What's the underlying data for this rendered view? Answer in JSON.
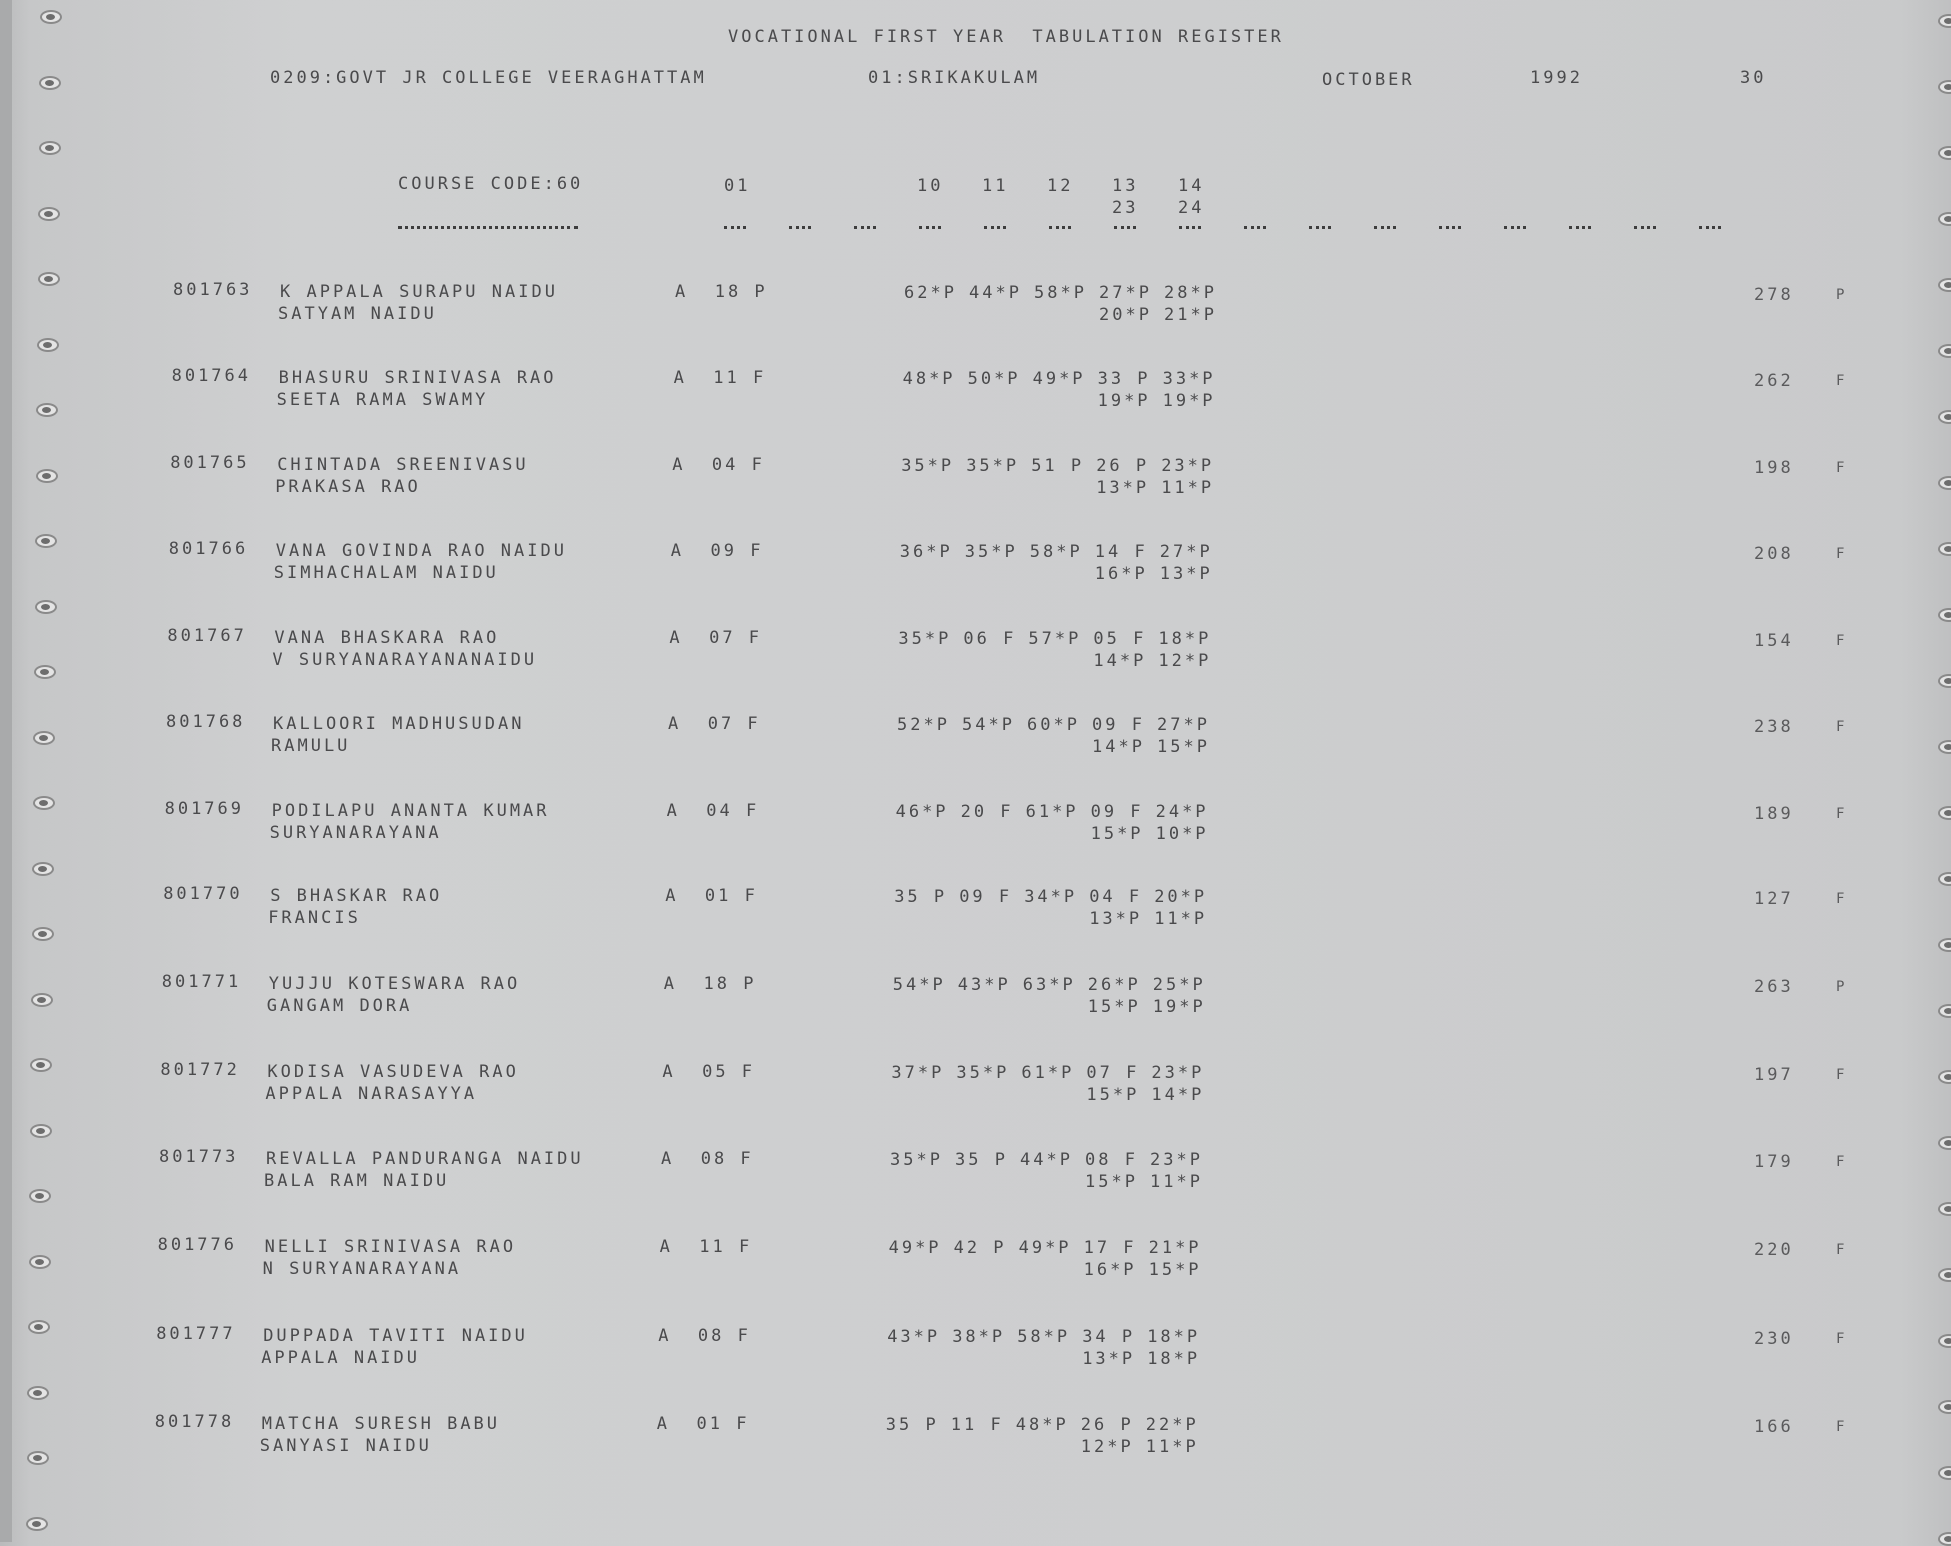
{
  "header": {
    "title": "VOCATIONAL FIRST YEAR  TABULATION REGISTER",
    "college": "0209:GOVT JR COLLEGE VEERAGHATTAM",
    "district": "01:SRIKAKULAM",
    "month": "OCTOBER",
    "year": "1992",
    "page": "30"
  },
  "columns": {
    "course_code": "COURSE CODE:60",
    "col_01": "01",
    "subjects": [
      "10",
      "11",
      "12",
      "13",
      "14"
    ],
    "subjects_line2": [
      "23",
      "24"
    ]
  },
  "rows": [
    {
      "roll": "801763",
      "name1": "K APPALA SURAPU NAIDU",
      "name2": "SATYAM NAIDU",
      "grade": "A  18 P",
      "marks": [
        "62*P",
        "44*P",
        "58*P",
        "27*P",
        "28*P"
      ],
      "marks2": [
        "20*P",
        "21*P"
      ],
      "total": "278",
      "result": "P"
    },
    {
      "roll": "801764",
      "name1": "BHASURU SRINIVASA RAO",
      "name2": "SEETA RAMA SWAMY",
      "grade": "A  11 F",
      "marks": [
        "48*P",
        "50*P",
        "49*P",
        "33 P",
        "33*P"
      ],
      "marks2": [
        "19*P",
        "19*P"
      ],
      "total": "262",
      "result": "F"
    },
    {
      "roll": "801765",
      "name1": "CHINTADA SREENIVASU",
      "name2": "PRAKASA RAO",
      "grade": "A  04 F",
      "marks": [
        "35*P",
        "35*P",
        "51 P",
        "26 P",
        "23*P"
      ],
      "marks2": [
        "13*P",
        "11*P"
      ],
      "total": "198",
      "result": "F"
    },
    {
      "roll": "801766",
      "name1": "VANA GOVINDA RAO NAIDU",
      "name2": "SIMHACHALAM NAIDU",
      "grade": "A  09 F",
      "marks": [
        "36*P",
        "35*P",
        "58*P",
        "14 F",
        "27*P"
      ],
      "marks2": [
        "16*P",
        "13*P"
      ],
      "total": "208",
      "result": "F"
    },
    {
      "roll": "801767",
      "name1": "VANA BHASKARA RAO",
      "name2": "V SURYANARAYANANAIDU",
      "grade": "A  07 F",
      "marks": [
        "35*P",
        "06 F",
        "57*P",
        "05 F",
        "18*P"
      ],
      "marks2": [
        "14*P",
        "12*P"
      ],
      "total": "154",
      "result": "F"
    },
    {
      "roll": "801768",
      "name1": "KALLOORI MADHUSUDAN",
      "name2": "RAMULU",
      "grade": "A  07 F",
      "marks": [
        "52*P",
        "54*P",
        "60*P",
        "09 F",
        "27*P"
      ],
      "marks2": [
        "14*P",
        "15*P"
      ],
      "total": "238",
      "result": "F"
    },
    {
      "roll": "801769",
      "name1": "PODILAPU ANANTA KUMAR",
      "name2": "SURYANARAYANA",
      "grade": "A  04 F",
      "marks": [
        "46*P",
        "20 F",
        "61*P",
        "09 F",
        "24*P"
      ],
      "marks2": [
        "15*P",
        "10*P"
      ],
      "total": "189",
      "result": "F"
    },
    {
      "roll": "801770",
      "name1": "S BHASKAR RAO",
      "name2": "FRANCIS",
      "grade": "A  01 F",
      "marks": [
        "35 P",
        "09 F",
        "34*P",
        "04 F",
        "20*P"
      ],
      "marks2": [
        "13*P",
        "11*P"
      ],
      "total": "127",
      "result": "F"
    },
    {
      "roll": "801771",
      "name1": "YUJJU KOTESWARA RAO",
      "name2": "GANGAM DORA",
      "grade": "A  18 P",
      "marks": [
        "54*P",
        "43*P",
        "63*P",
        "26*P",
        "25*P"
      ],
      "marks2": [
        "15*P",
        "19*P"
      ],
      "total": "263",
      "result": "P"
    },
    {
      "roll": "801772",
      "name1": "KODISA VASUDEVA RAO",
      "name2": "APPALA NARASAYYA",
      "grade": "A  05 F",
      "marks": [
        "37*P",
        "35*P",
        "61*P",
        "07 F",
        "23*P"
      ],
      "marks2": [
        "15*P",
        "14*P"
      ],
      "total": "197",
      "result": "F"
    },
    {
      "roll": "801773",
      "name1": "REVALLA PANDURANGA NAIDU",
      "name2": "BALA RAM NAIDU",
      "grade": "A  08 F",
      "marks": [
        "35*P",
        "35 P",
        "44*P",
        "08 F",
        "23*P"
      ],
      "marks2": [
        "15*P",
        "11*P"
      ],
      "total": "179",
      "result": "F"
    },
    {
      "roll": "801776",
      "name1": "NELLI SRINIVASA RAO",
      "name2": "N SURYANARAYANA",
      "grade": "A  11 F",
      "marks": [
        "49*P",
        "42 P",
        "49*P",
        "17 F",
        "21*P"
      ],
      "marks2": [
        "16*P",
        "15*P"
      ],
      "total": "220",
      "result": "F"
    },
    {
      "roll": "801777",
      "name1": "DUPPADA TAVITI NAIDU",
      "name2": "APPALA NAIDU",
      "grade": "A  08 F",
      "marks": [
        "43*P",
        "38*P",
        "58*P",
        "34 P",
        "18*P"
      ],
      "marks2": [
        "13*P",
        "18*P"
      ],
      "total": "230",
      "result": "F"
    },
    {
      "roll": "801778",
      "name1": "MATCHA SURESH BABU",
      "name2": "SANYASI NAIDU",
      "grade": "A  01 F",
      "marks": [
        "35 P",
        "11 F",
        "48*P",
        "26 P",
        "22*P"
      ],
      "marks2": [
        "12*P",
        "11*P"
      ],
      "total": "166",
      "result": "F"
    }
  ]
}
